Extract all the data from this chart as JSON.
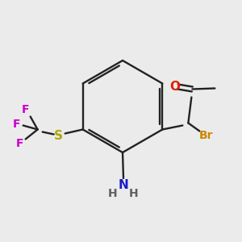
{
  "bg_color": "#ebebeb",
  "bond_color": "#222222",
  "colors": {
    "N": "#1a1acc",
    "H_gray": "#606060",
    "S": "#aaaa00",
    "F": "#cc00cc",
    "Br": "#cc8800",
    "O": "#dd2200",
    "C": "#222222"
  }
}
